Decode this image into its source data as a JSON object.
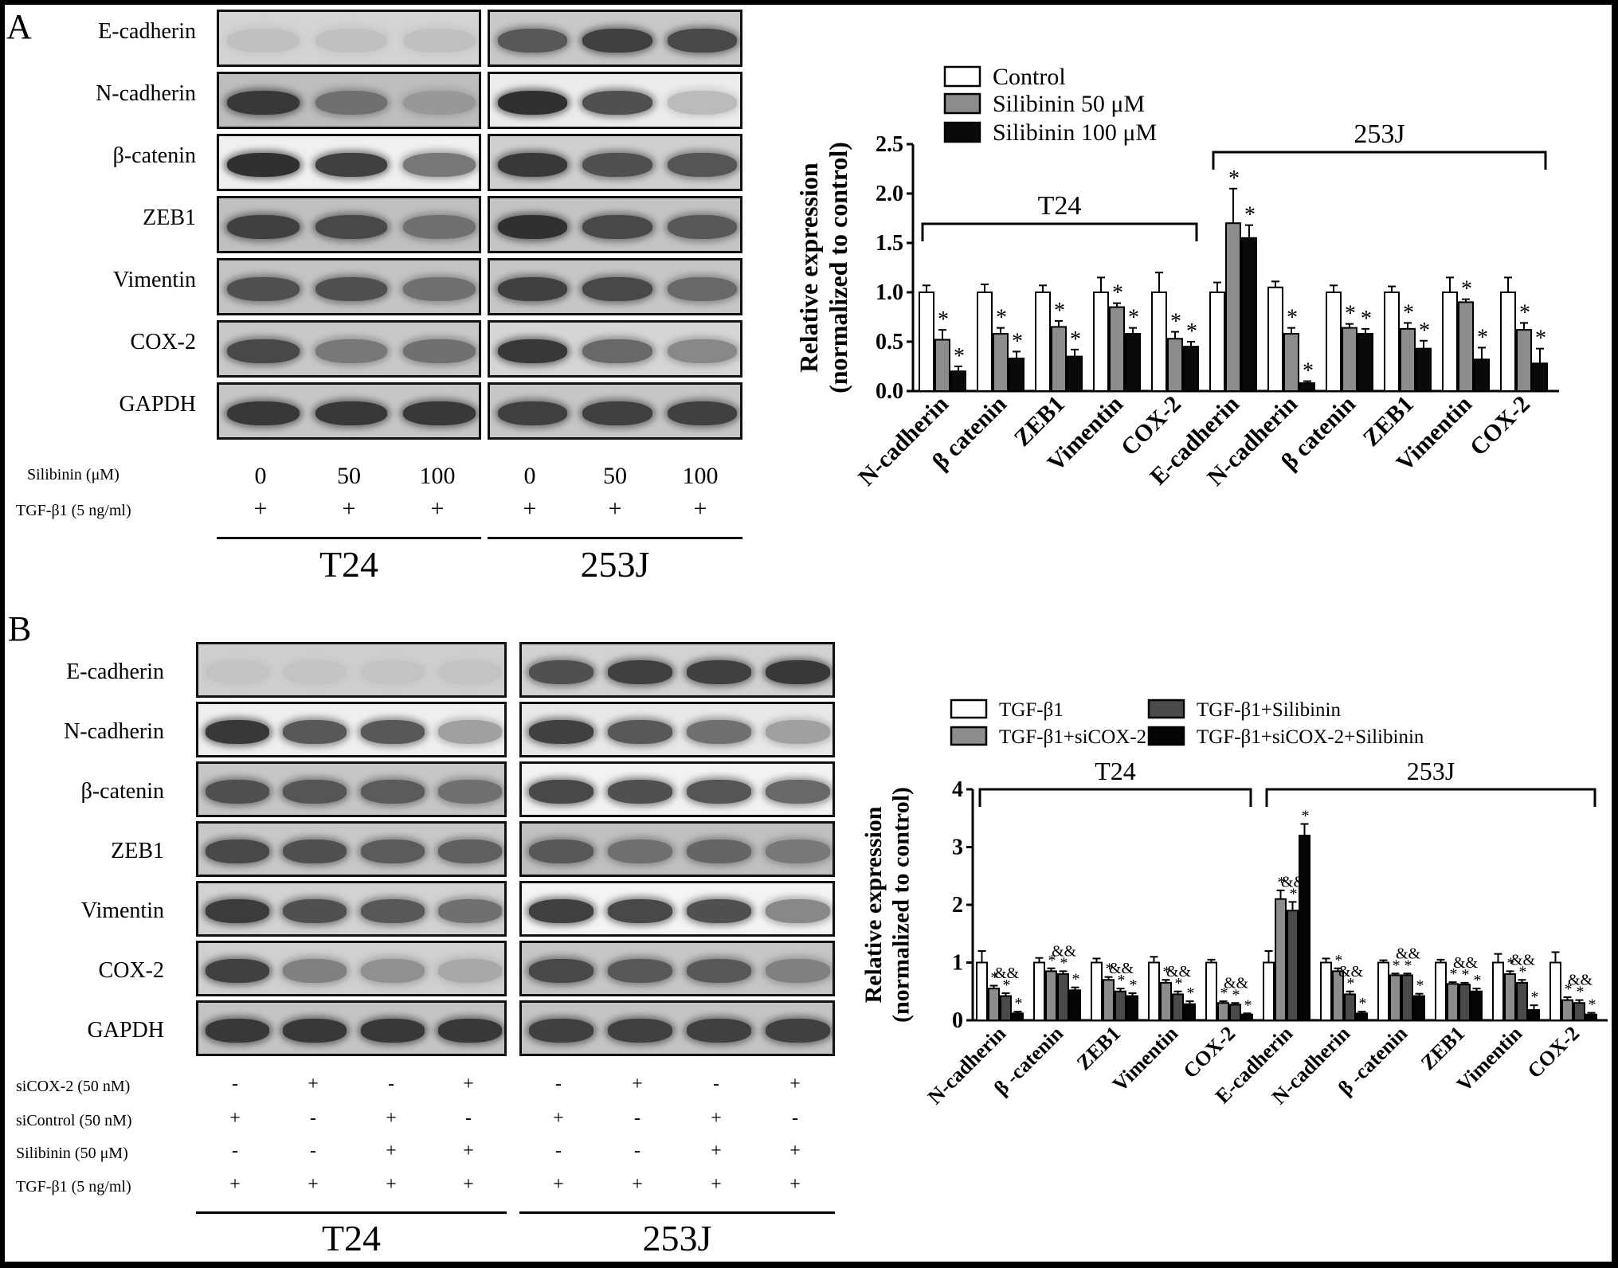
{
  "panel_a": {
    "letter": "A",
    "proteins": [
      "E-cadherin",
      "N-cadherin",
      "β-catenin",
      "ZEB1",
      "Vimentin",
      "COX-2",
      "GAPDH"
    ],
    "conditions": [
      {
        "label": "Silibinin (μM)",
        "values": [
          "0",
          "50",
          "100",
          "0",
          "50",
          "100"
        ]
      },
      {
        "label": "TGF-β1 (5 ng/ml)",
        "values": [
          "+",
          "+",
          "+",
          "+",
          "+",
          "+"
        ]
      }
    ],
    "groups": [
      "T24",
      "253J"
    ]
  },
  "panel_b": {
    "letter": "B",
    "proteins": [
      "E-cadherin",
      "N-cadherin",
      "β-catenin",
      "ZEB1",
      "Vimentin",
      "COX-2",
      "GAPDH"
    ],
    "conditions": [
      {
        "label": "siCOX-2 (50 nM)",
        "values": [
          "-",
          "+",
          "-",
          "+",
          "-",
          "+",
          "-",
          "+"
        ]
      },
      {
        "label": "siControl (50 nM)",
        "values": [
          "+",
          "-",
          "+",
          "-",
          "+",
          "-",
          "+",
          "-"
        ]
      },
      {
        "label": "Silibinin (50 μM)",
        "values": [
          "-",
          "-",
          "+",
          "+",
          "-",
          "-",
          "+",
          "+"
        ]
      },
      {
        "label": "TGF-β1 (5 ng/ml)",
        "values": [
          "+",
          "+",
          "+",
          "+",
          "+",
          "+",
          "+",
          "+"
        ]
      }
    ],
    "groups": [
      "T24",
      "253J"
    ]
  },
  "chart_data": [
    {
      "type": "bar",
      "ylabel": "Relative expression (normalized to control)",
      "ylim": [
        0,
        2.5
      ],
      "yticks": [
        "0.0",
        "0.5",
        "1.0",
        "1.5",
        "2.0",
        "2.5"
      ],
      "categories": [
        "N-cadherin",
        "β catenin",
        "ZEB1",
        "Vimentin",
        "COX-2",
        "E-cadherin",
        "N-cadherin",
        "β catenin",
        "ZEB1",
        "Vimentin",
        "COX-2"
      ],
      "brackets": [
        {
          "label": "T24",
          "from": 0,
          "to": 4
        },
        {
          "label": "253J",
          "from": 5,
          "to": 10
        }
      ],
      "series": [
        {
          "name": "Control",
          "color": "#ffffff",
          "values": [
            1.0,
            1.0,
            1.0,
            1.0,
            1.0,
            1.0,
            1.05,
            1.0,
            1.0,
            1.0,
            1.0
          ],
          "errors": [
            0.07,
            0.08,
            0.07,
            0.15,
            0.2,
            0.1,
            0.06,
            0.07,
            0.06,
            0.15,
            0.15
          ],
          "marks": [
            "",
            "",
            "",
            "",
            "",
            "",
            "",
            "",
            "",
            "",
            ""
          ]
        },
        {
          "name": "Silibinin 50 μM",
          "color": "#8c8c8c",
          "values": [
            0.52,
            0.58,
            0.65,
            0.85,
            0.53,
            1.7,
            0.58,
            0.64,
            0.63,
            0.9,
            0.62
          ],
          "errors": [
            0.1,
            0.06,
            0.06,
            0.04,
            0.07,
            0.35,
            0.06,
            0.04,
            0.06,
            0.03,
            0.07
          ],
          "marks": [
            "*",
            "*",
            "*",
            "*",
            "*",
            "*",
            "*",
            "*",
            "*",
            "*",
            "*"
          ]
        },
        {
          "name": "Silibinin 100 μM",
          "color": "#0a0a0a",
          "values": [
            0.2,
            0.33,
            0.35,
            0.58,
            0.45,
            1.55,
            0.08,
            0.58,
            0.43,
            0.32,
            0.28
          ],
          "errors": [
            0.05,
            0.07,
            0.07,
            0.06,
            0.05,
            0.13,
            0.02,
            0.05,
            0.08,
            0.12,
            0.15
          ],
          "marks": [
            "*",
            "*",
            "*",
            "*",
            "*",
            "*",
            "*",
            "*",
            "*",
            "*",
            "*"
          ]
        }
      ],
      "legend_position": "top"
    },
    {
      "type": "bar",
      "ylabel": "Relative expression (normalized to control)",
      "ylim": [
        0,
        4
      ],
      "yticks": [
        "0",
        "1",
        "2",
        "3",
        "4"
      ],
      "categories": [
        "N-cadherin",
        "β -catenin",
        "ZEB1",
        "Vimentin",
        "COX-2",
        "E-cadherin",
        "N-cadherin",
        "β -catenin",
        "ZEB1",
        "Vimentin",
        "COX-2"
      ],
      "brackets": [
        {
          "label": "T24",
          "from": 0,
          "to": 4
        },
        {
          "label": "253J",
          "from": 5,
          "to": 10
        }
      ],
      "series": [
        {
          "name": "TGF-β1",
          "color": "#ffffff",
          "values": [
            1.0,
            1.0,
            1.0,
            1.0,
            1.0,
            1.0,
            1.0,
            1.0,
            1.0,
            1.0,
            1.0
          ],
          "errors": [
            0.2,
            0.08,
            0.07,
            0.1,
            0.05,
            0.2,
            0.07,
            0.04,
            0.05,
            0.15,
            0.18
          ],
          "marks": [
            "",
            "",
            "",
            "",
            "",
            "",
            "",
            "",
            "",
            "",
            ""
          ]
        },
        {
          "name": "TGF-β1+siCOX-2",
          "color": "#8c8c8c",
          "values": [
            0.55,
            0.85,
            0.7,
            0.65,
            0.3,
            2.1,
            0.85,
            0.78,
            0.63,
            0.8,
            0.35
          ],
          "errors": [
            0.05,
            0.05,
            0.05,
            0.05,
            0.03,
            0.15,
            0.05,
            0.03,
            0.03,
            0.05,
            0.05
          ],
          "marks": [
            "*",
            "*",
            "*",
            "*",
            "*",
            "*",
            "*",
            "*",
            "*",
            "*",
            "*"
          ]
        },
        {
          "name": "TGF-β1+Silibinin",
          "color": "#4a4a4a",
          "values": [
            0.42,
            0.8,
            0.5,
            0.45,
            0.27,
            1.9,
            0.45,
            0.78,
            0.62,
            0.65,
            0.3
          ],
          "errors": [
            0.05,
            0.05,
            0.05,
            0.05,
            0.03,
            0.15,
            0.05,
            0.03,
            0.03,
            0.05,
            0.05
          ],
          "marks": [
            "&&\n*",
            "&&\n*",
            "&&\n*",
            "&&\n*",
            "&&\n*",
            "&&\n*",
            "&&\n*",
            "&&\n*",
            "&&\n*",
            "&&\n*",
            "&&\n*"
          ]
        },
        {
          "name": "TGF-β1+siCOX-2+Silibinin",
          "color": "#050505",
          "values": [
            0.12,
            0.52,
            0.42,
            0.28,
            0.1,
            3.2,
            0.12,
            0.42,
            0.5,
            0.18,
            0.1
          ],
          "errors": [
            0.03,
            0.05,
            0.05,
            0.05,
            0.02,
            0.2,
            0.03,
            0.04,
            0.05,
            0.08,
            0.03
          ],
          "marks": [
            "*",
            "*",
            "*",
            "*",
            "*",
            "*",
            "*",
            "*",
            "*",
            "*",
            "*"
          ]
        }
      ],
      "legend_position": "top"
    }
  ]
}
